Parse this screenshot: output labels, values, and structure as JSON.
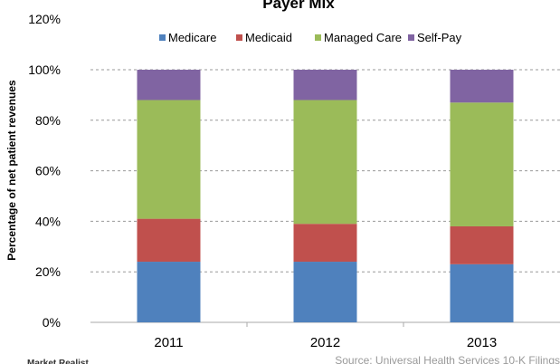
{
  "chart_data": {
    "type": "bar",
    "stacked": true,
    "title": "Payer Mix",
    "xlabel": "",
    "ylabel": "Percentage of net patient revenues",
    "categories": [
      "2011",
      "2012",
      "2013"
    ],
    "series": [
      {
        "name": "Medicare",
        "color": "#4F81BD",
        "values": [
          24,
          24,
          23
        ]
      },
      {
        "name": "Medicaid",
        "color": "#C0504D",
        "values": [
          17,
          15,
          15
        ]
      },
      {
        "name": "Managed Care",
        "color": "#9BBB59",
        "values": [
          47,
          49,
          49
        ]
      },
      {
        "name": "Self-Pay",
        "color": "#8064A2",
        "values": [
          12,
          12,
          13
        ]
      }
    ],
    "ylim": [
      0,
      120
    ],
    "yticks": [
      "0%",
      "20%",
      "40%",
      "60%",
      "80%",
      "100%",
      "120%"
    ],
    "grid": true,
    "legend": "top",
    "source": "Source: Universal Health Services 10-K Filings",
    "watermark": "Market Realist"
  }
}
